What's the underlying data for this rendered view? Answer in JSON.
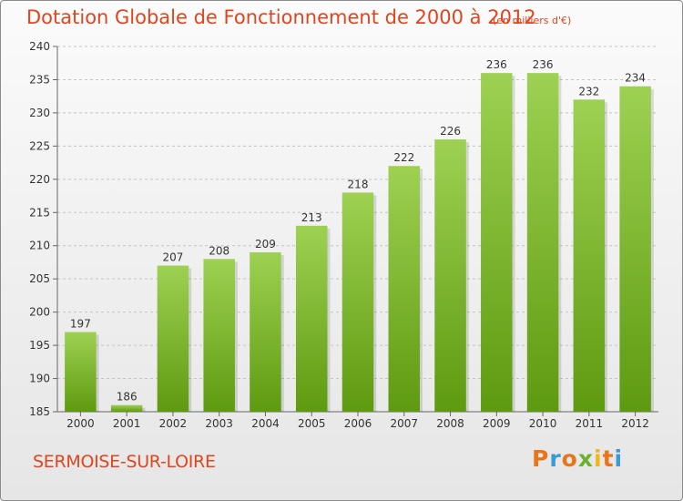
{
  "header": {
    "title": "Dotation Globale de Fonctionnement de 2000 à 2012",
    "subtitle": "(en milliers d'€)"
  },
  "footer": {
    "commune": "SERMOISE-SUR-LOIRE",
    "logo_text": "Proxiti"
  },
  "colors": {
    "title": "#e0451e",
    "bar_top": "#9ed152",
    "bar_bottom": "#5e9a10",
    "logo_letters": [
      "#e9751b",
      "#3a9ad8",
      "#e9751b",
      "#6cb02b",
      "#f2b51a",
      "#e9751b",
      "#3a9ad8"
    ]
  },
  "chart_data": {
    "type": "bar",
    "title": "Dotation Globale de Fonctionnement de 2000 à 2012",
    "subtitle": "(en milliers d'€)",
    "xlabel": "",
    "ylabel": "",
    "categories": [
      "2000",
      "2001",
      "2002",
      "2003",
      "2004",
      "2005",
      "2006",
      "2007",
      "2008",
      "2009",
      "2010",
      "2011",
      "2012"
    ],
    "values": [
      197,
      186,
      207,
      208,
      209,
      213,
      218,
      222,
      226,
      236,
      236,
      232,
      234
    ],
    "ylim": [
      185,
      240
    ],
    "yticks": [
      185,
      190,
      195,
      200,
      205,
      210,
      215,
      220,
      225,
      230,
      235,
      240
    ],
    "grid": true,
    "grid_style": "dashed horizontal"
  }
}
